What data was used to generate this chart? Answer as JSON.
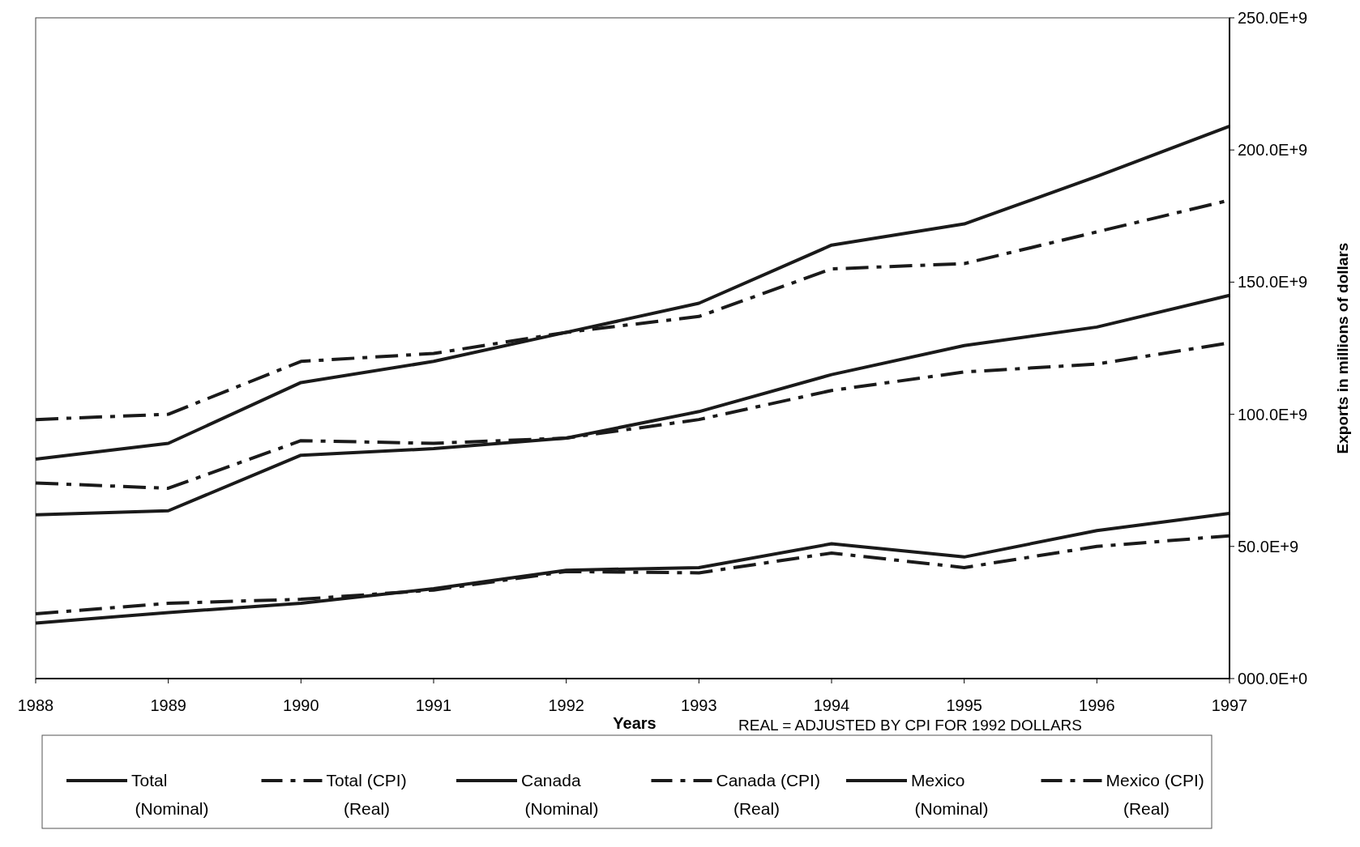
{
  "chart_data": {
    "type": "line",
    "xlabel": "Years",
    "ylabel": "Exports in millions of dollars",
    "annotations": [
      "REAL = ADJUSTED BY CPI FOR 1992 DOLLARS"
    ],
    "x": [
      1988,
      1989,
      1990,
      1991,
      1992,
      1993,
      1994,
      1995,
      1996,
      1997
    ],
    "xlim": [
      1988,
      1997
    ],
    "xticks": [
      1988,
      1989,
      1990,
      1991,
      1992,
      1993,
      1994,
      1995,
      1996,
      1997
    ],
    "ylim": [
      0,
      250000000000.0
    ],
    "yticks": [
      {
        "value": 0,
        "label": "000.0E+0"
      },
      {
        "value": 50000000000.0,
        "label": "50.0E+9"
      },
      {
        "value": 100000000000.0,
        "label": "100.0E+9"
      },
      {
        "value": 150000000000.0,
        "label": "150.0E+9"
      },
      {
        "value": 200000000000.0,
        "label": "200.0E+9"
      },
      {
        "value": 250000000000.0,
        "label": "250.0E+9"
      }
    ],
    "grid": false,
    "legend": "bottom",
    "series": [
      {
        "name": "Total (Nominal)",
        "color": "#1a1a1a",
        "line_style": "solid",
        "values": [
          83000000000.0,
          89000000000.0,
          112000000000.0,
          120000000000.0,
          131000000000.0,
          142000000000.0,
          164000000000.0,
          172000000000.0,
          190000000000.0,
          209000000000.0
        ]
      },
      {
        "name": "Total (CPI) (Real)",
        "color": "#1a1a1a",
        "line_style": "dashed",
        "values": [
          98000000000.0,
          100000000000.0,
          120000000000.0,
          123000000000.0,
          131000000000.0,
          137000000000.0,
          155000000000.0,
          157000000000.0,
          169000000000.0,
          181000000000.0
        ]
      },
      {
        "name": "Canada (Nominal)",
        "color": "#1a1a1a",
        "line_style": "solid",
        "values": [
          62000000000.0,
          63500000000.0,
          84500000000.0,
          87000000000.0,
          91000000000.0,
          101000000000.0,
          115000000000.0,
          126000000000.0,
          133000000000.0,
          145000000000.0
        ]
      },
      {
        "name": "Canada (CPI) (Real)",
        "color": "#1a1a1a",
        "line_style": "dashed",
        "values": [
          74000000000.0,
          72000000000.0,
          90000000000.0,
          89000000000.0,
          91000000000.0,
          98000000000.0,
          109000000000.0,
          116000000000.0,
          119000000000.0,
          127000000000.0
        ]
      },
      {
        "name": "Mexico (Nominal)",
        "color": "#1a1a1a",
        "line_style": "solid",
        "values": [
          21000000000.0,
          25000000000.0,
          28500000000.0,
          34000000000.0,
          41000000000.0,
          42000000000.0,
          51000000000.0,
          46000000000.0,
          56000000000.0,
          62500000000.0
        ]
      },
      {
        "name": "Mexico (CPI) (Real)",
        "color": "#1a1a1a",
        "line_style": "dashed",
        "values": [
          24500000000.0,
          28500000000.0,
          30000000000.0,
          33500000000.0,
          40500000000.0,
          40000000000.0,
          47500000000.0,
          42000000000.0,
          50000000000.0,
          54000000000.0
        ]
      }
    ]
  }
}
